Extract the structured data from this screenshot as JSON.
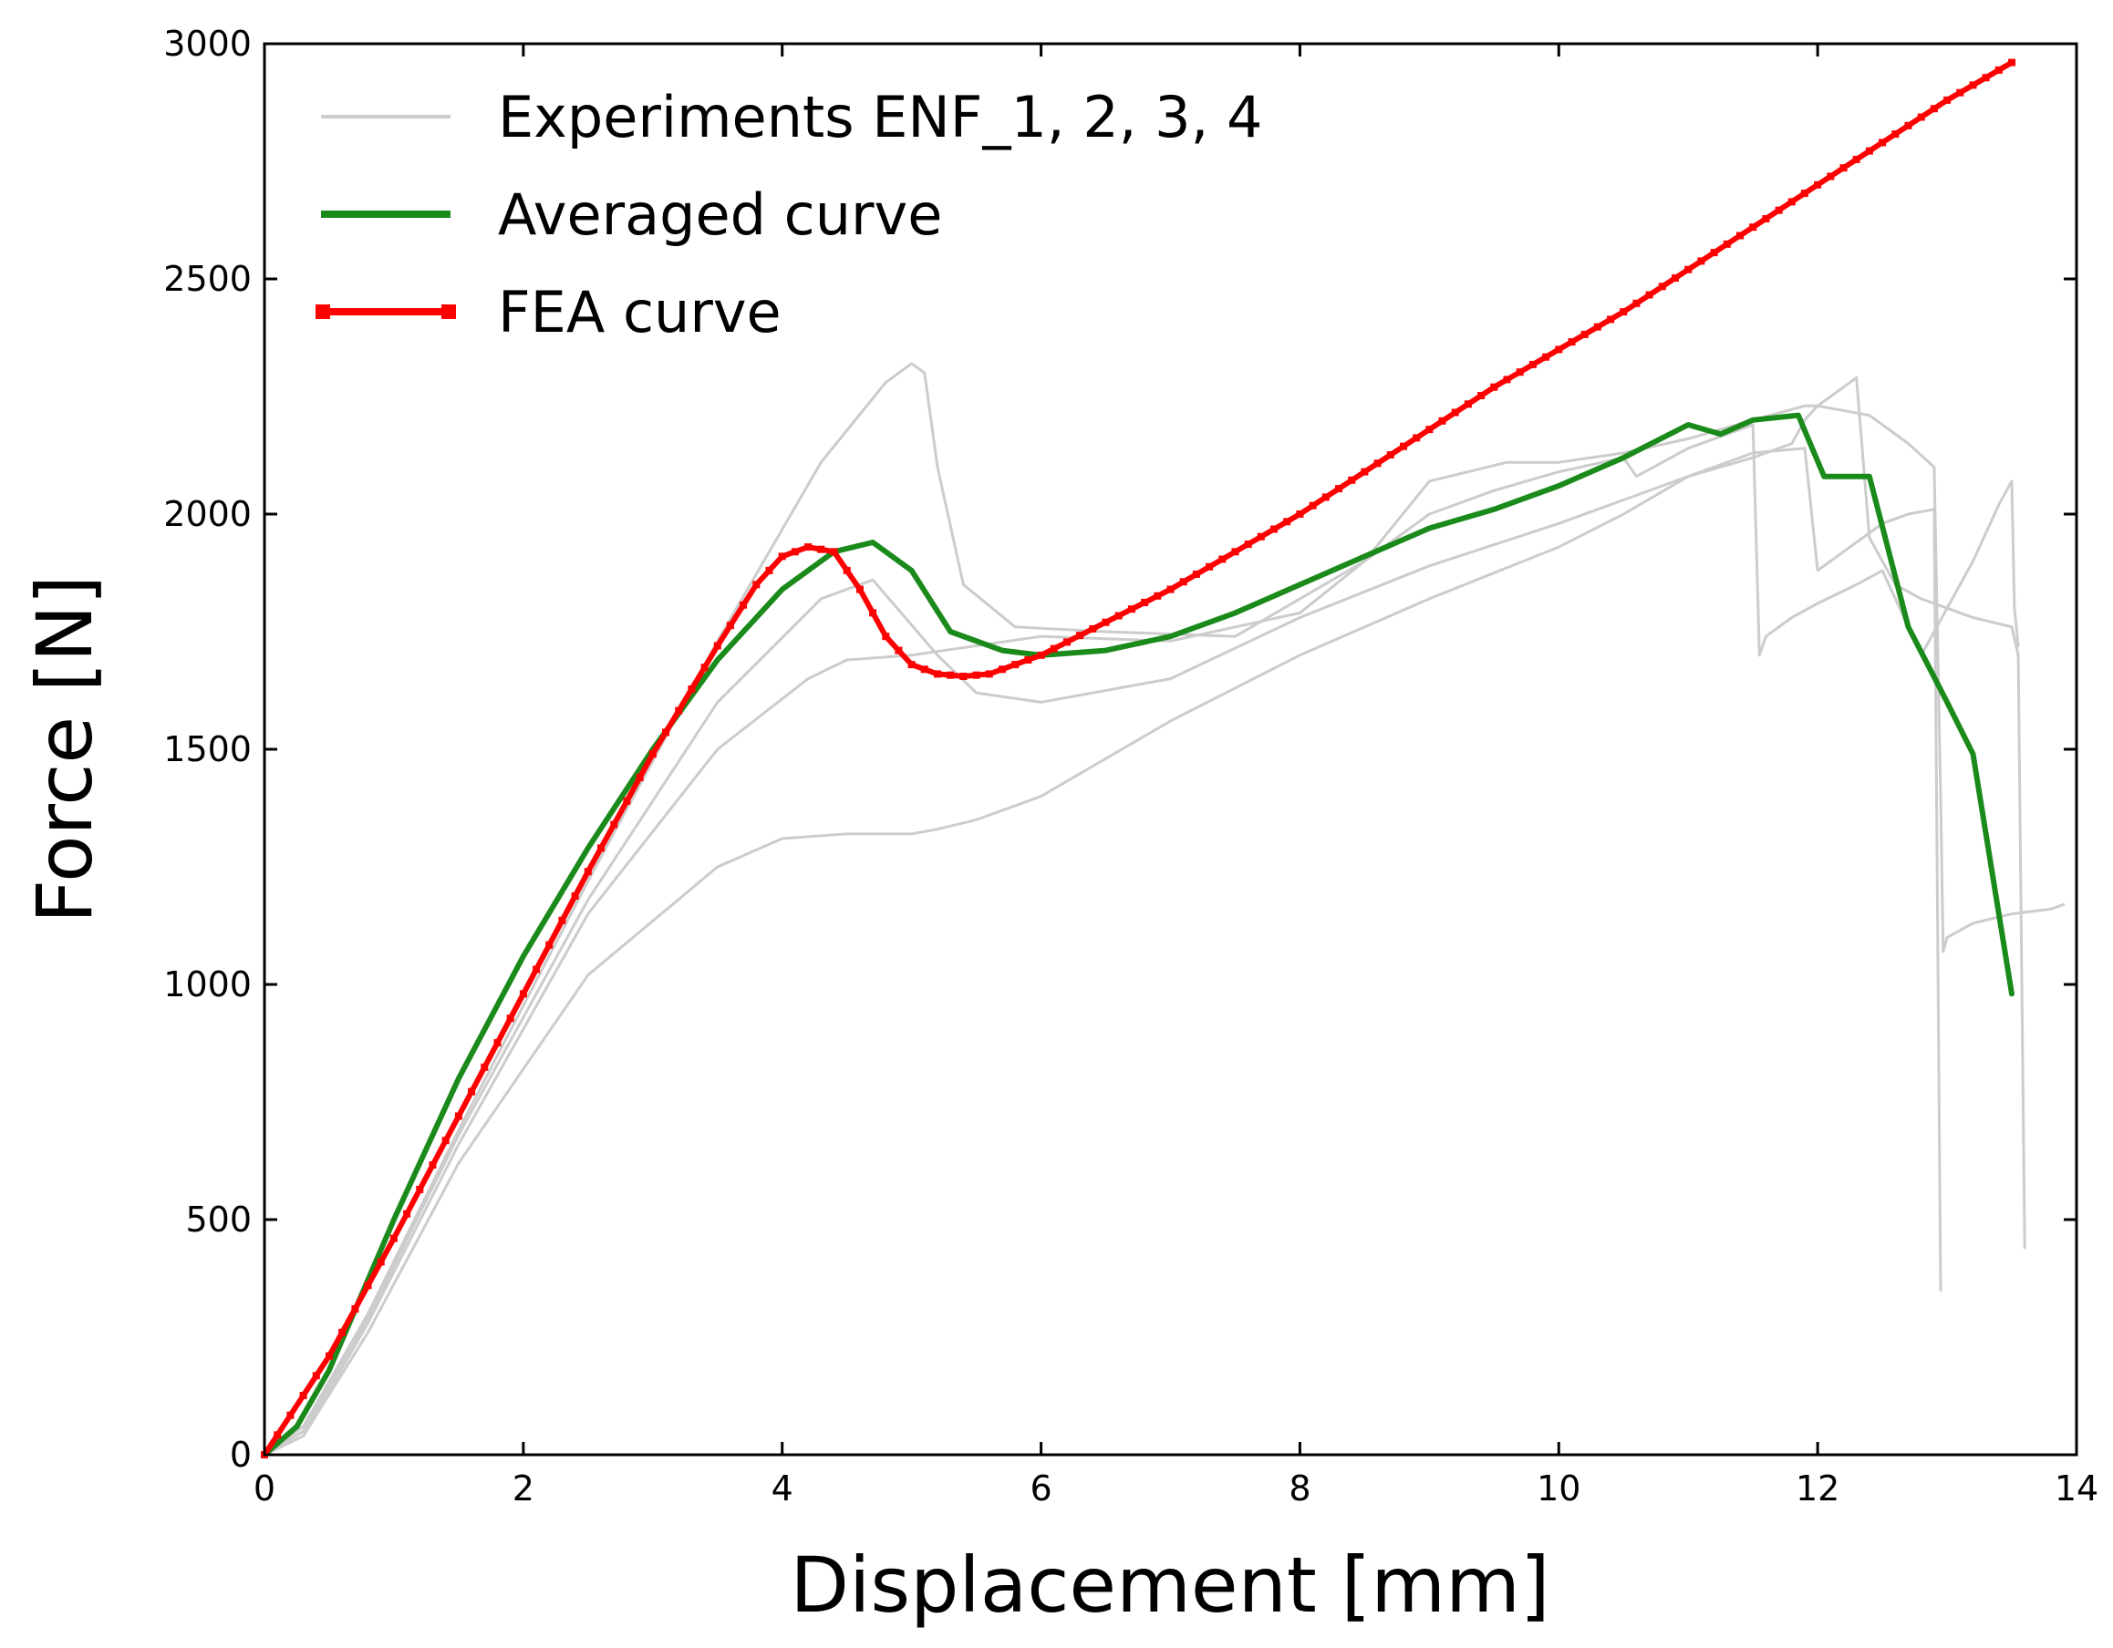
{
  "chart_data": {
    "type": "line",
    "xlabel": "Displacement [mm]",
    "ylabel": "Force [N]",
    "xlim": [
      0,
      14
    ],
    "ylim": [
      0,
      3000
    ],
    "xticks": [
      0,
      2,
      4,
      6,
      8,
      10,
      12,
      14
    ],
    "yticks": [
      0,
      500,
      1000,
      1500,
      2000,
      2500,
      3000
    ],
    "grid": false,
    "legend_position": "top-left",
    "legend": [
      {
        "label": "Experiments ENF_1, 2, 3, 4",
        "color": "#cccccc",
        "marker": "none"
      },
      {
        "label": "Averaged curve",
        "color": "#1a8a1a",
        "marker": "none"
      },
      {
        "label": "FEA curve",
        "color": "#ff0000",
        "marker": "square"
      }
    ],
    "series": [
      {
        "name": "ENF_1",
        "group": "experiments",
        "color": "#cccccc",
        "x": [
          0,
          0.3,
          0.8,
          1.5,
          2.5,
          3.5,
          4.3,
          4.8,
          5.0,
          5.1,
          5.2,
          5.4,
          5.8,
          6.5,
          7.5,
          8.5,
          9.0,
          9.3,
          9.6,
          10.0,
          10.5,
          11.0,
          11.5,
          11.9,
          12.0,
          12.4,
          12.7,
          12.9,
          12.95,
          12.97,
          13.0,
          13.2,
          13.5,
          13.8,
          13.9
        ],
        "y": [
          0,
          60,
          300,
          690,
          1220,
          1730,
          2110,
          2280,
          2320,
          2300,
          2100,
          1850,
          1760,
          1750,
          1740,
          1900,
          2070,
          2090,
          2110,
          2110,
          2130,
          2160,
          2200,
          2230,
          2230,
          2210,
          2150,
          2100,
          1400,
          1070,
          1100,
          1130,
          1150,
          1160,
          1170
        ]
      },
      {
        "name": "ENF_2",
        "group": "experiments",
        "color": "#cccccc",
        "x": [
          0,
          0.3,
          0.8,
          1.5,
          2.5,
          3.5,
          4.3,
          4.7,
          5.2,
          5.5,
          6.0,
          7.0,
          8.0,
          9.0,
          10.0,
          11.0,
          11.5,
          11.8,
          11.9,
          12.0,
          12.1,
          12.2,
          12.3,
          12.4,
          12.6,
          12.8,
          13.0,
          13.2,
          13.5,
          13.55,
          13.6
        ],
        "y": [
          0,
          50,
          290,
          680,
          1180,
          1600,
          1820,
          1860,
          1700,
          1620,
          1600,
          1650,
          1780,
          1890,
          1980,
          2080,
          2120,
          2150,
          2200,
          2230,
          2250,
          2270,
          2290,
          1950,
          1850,
          1820,
          1800,
          1780,
          1760,
          1700,
          440
        ]
      },
      {
        "name": "ENF_3",
        "group": "experiments",
        "color": "#cccccc",
        "x": [
          0,
          0.3,
          0.8,
          1.5,
          2.5,
          3.5,
          4.2,
          4.5,
          5.0,
          6.0,
          7.0,
          8.0,
          8.5,
          9.0,
          9.5,
          10.0,
          10.5,
          10.6,
          11.0,
          11.5,
          11.55,
          11.6,
          11.8,
          12.0,
          12.3,
          12.5,
          12.8,
          13.0,
          13.2,
          13.4,
          13.5,
          13.52,
          13.55
        ],
        "y": [
          0,
          40,
          280,
          660,
          1150,
          1500,
          1650,
          1690,
          1700,
          1740,
          1730,
          1790,
          1900,
          2000,
          2050,
          2090,
          2120,
          2080,
          2140,
          2190,
          1700,
          1740,
          1780,
          1810,
          1850,
          1880,
          1700,
          1800,
          1900,
          2020,
          2070,
          1800,
          1720
        ]
      },
      {
        "name": "ENF_4",
        "group": "experiments",
        "color": "#cccccc",
        "x": [
          0,
          0.3,
          0.8,
          1.5,
          2.5,
          3.5,
          4.0,
          4.5,
          5.0,
          5.2,
          5.5,
          6.0,
          7.0,
          8.0,
          9.0,
          10.0,
          10.5,
          11.0,
          11.5,
          11.9,
          12.0,
          12.1,
          12.3,
          12.5,
          12.7,
          12.9,
          12.95
        ],
        "y": [
          0,
          40,
          260,
          620,
          1020,
          1250,
          1310,
          1320,
          1320,
          1330,
          1350,
          1400,
          1560,
          1700,
          1820,
          1930,
          2000,
          2080,
          2130,
          2140,
          1880,
          1900,
          1940,
          1980,
          2000,
          2010,
          350
        ]
      },
      {
        "name": "Averaged curve",
        "group": "average",
        "color": "#1a8a1a",
        "x": [
          0,
          0.25,
          0.5,
          1.0,
          1.5,
          2.0,
          2.5,
          3.0,
          3.5,
          4.0,
          4.4,
          4.7,
          5.0,
          5.3,
          5.7,
          6.0,
          6.5,
          7.0,
          7.5,
          8.0,
          8.5,
          9.0,
          9.5,
          10.0,
          10.5,
          11.0,
          11.25,
          11.5,
          11.85,
          12.05,
          12.4,
          12.7,
          13.0,
          13.2,
          13.5
        ],
        "y": [
          0,
          60,
          180,
          500,
          800,
          1060,
          1290,
          1500,
          1690,
          1840,
          1920,
          1940,
          1880,
          1750,
          1710,
          1700,
          1710,
          1740,
          1790,
          1850,
          1910,
          1970,
          2010,
          2060,
          2120,
          2190,
          2170,
          2200,
          2210,
          2080,
          2080,
          1760,
          1600,
          1490,
          980
        ]
      },
      {
        "name": "FEA curve",
        "group": "fea",
        "color": "#ff0000",
        "marker": "square",
        "x": [
          0,
          0.5,
          1.0,
          1.5,
          2.0,
          2.5,
          3.0,
          3.5,
          3.8,
          4.0,
          4.2,
          4.4,
          4.6,
          4.8,
          5.0,
          5.2,
          5.4,
          5.6,
          5.8,
          6.0,
          6.5,
          7.0,
          7.5,
          8.0,
          8.5,
          9.0,
          9.5,
          10.0,
          10.5,
          11.0,
          11.5,
          12.0,
          12.5,
          13.0,
          13.5
        ],
        "y": [
          0,
          210,
          460,
          720,
          980,
          1240,
          1490,
          1720,
          1850,
          1910,
          1930,
          1920,
          1840,
          1740,
          1680,
          1660,
          1655,
          1660,
          1680,
          1700,
          1770,
          1840,
          1920,
          2000,
          2090,
          2180,
          2270,
          2350,
          2430,
          2520,
          2610,
          2700,
          2790,
          2880,
          2960
        ]
      }
    ]
  }
}
